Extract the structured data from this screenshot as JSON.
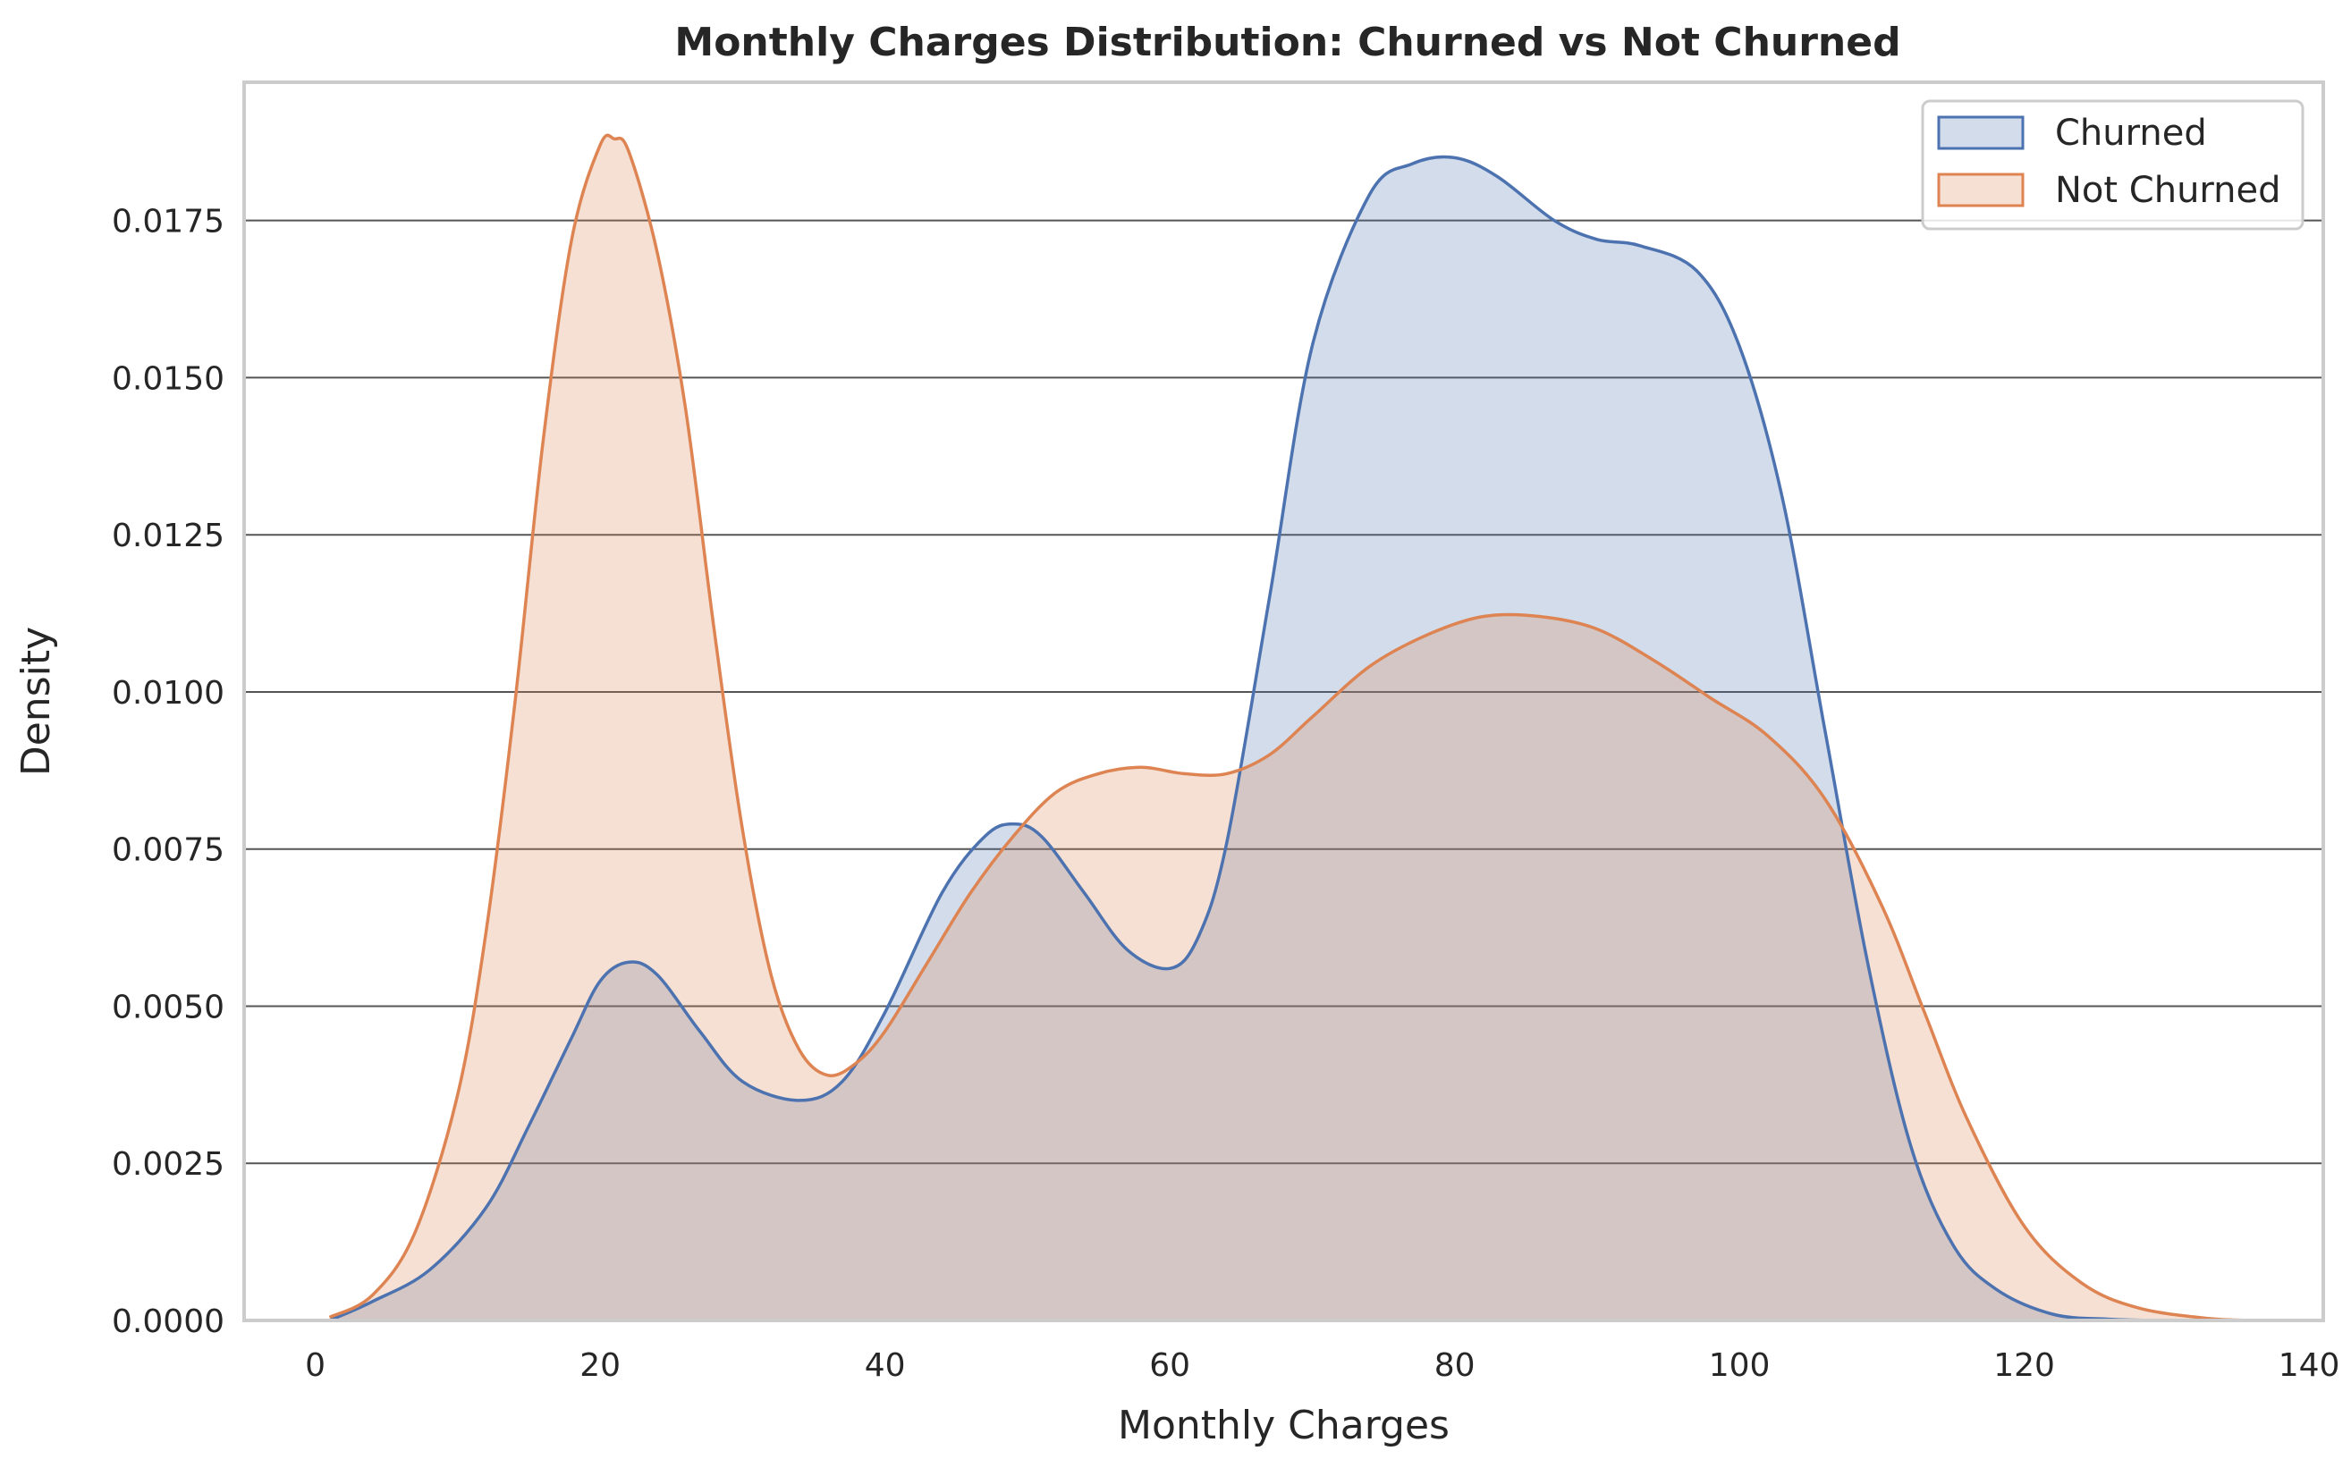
{
  "chart_data": {
    "type": "area",
    "title": "Monthly Charges Distribution: Churned vs Not Churned",
    "xlabel": "Monthly Charges",
    "ylabel": "Density",
    "xlim": [
      -5,
      141
    ],
    "ylim": [
      0,
      0.0197
    ],
    "xticks": [
      0,
      20,
      40,
      60,
      80,
      100,
      120,
      140
    ],
    "xtick_labels": [
      "0",
      "20",
      "40",
      "60",
      "80",
      "100",
      "120",
      "140"
    ],
    "yticks": [
      0,
      0.0025,
      0.005,
      0.0075,
      0.01,
      0.0125,
      0.015,
      0.0175
    ],
    "ytick_labels": [
      "0.0000",
      "0.0025",
      "0.0050",
      "0.0075",
      "0.0100",
      "0.0125",
      "0.0150",
      "0.0175"
    ],
    "grid": "horizontal",
    "legend_position": "top-right",
    "series": [
      {
        "name": "Churned",
        "color": "#4c72b0",
        "fill": "#4c72b0",
        "x": [
          1,
          4,
          8,
          12,
          15,
          18,
          20,
          22,
          24,
          27,
          30,
          34,
          37,
          40,
          44,
          47,
          49,
          51,
          54,
          57,
          60,
          62,
          64,
          67,
          70,
          74,
          77,
          80,
          83,
          87,
          90,
          93,
          97,
          100,
          103,
          106,
          109,
          112,
          115,
          118,
          122,
          126,
          130,
          136
        ],
        "y": [
          0,
          0.0003,
          0.0008,
          0.0018,
          0.0031,
          0.0045,
          0.0054,
          0.0057,
          0.0055,
          0.0046,
          0.0038,
          0.0035,
          0.0038,
          0.0049,
          0.0068,
          0.0077,
          0.0079,
          0.0077,
          0.0068,
          0.0059,
          0.0056,
          0.0061,
          0.0076,
          0.0115,
          0.0155,
          0.0179,
          0.0184,
          0.0185,
          0.0182,
          0.0175,
          0.0172,
          0.0171,
          0.0167,
          0.0155,
          0.0131,
          0.0094,
          0.0057,
          0.0028,
          0.0012,
          0.0005,
          0.0001,
          2e-05,
          0,
          0
        ]
      },
      {
        "name": "Not Churned",
        "color": "#dd8452",
        "fill": "#dd8452",
        "x": [
          1,
          4,
          7,
          10,
          12,
          14,
          16,
          18,
          20,
          21,
          22,
          24,
          26,
          28,
          30,
          32,
          34,
          36,
          38,
          40,
          43,
          46,
          49,
          52,
          55,
          58,
          61,
          64,
          67,
          70,
          74,
          78,
          82,
          86,
          90,
          94,
          98,
          102,
          106,
          110,
          113,
          116,
          120,
          124,
          128,
          133,
          136
        ],
        "y": [
          5e-05,
          0.0004,
          0.0014,
          0.0036,
          0.0062,
          0.0098,
          0.014,
          0.0172,
          0.0187,
          0.0188,
          0.0186,
          0.017,
          0.0145,
          0.011,
          0.0078,
          0.0055,
          0.0043,
          0.0039,
          0.0041,
          0.0046,
          0.0057,
          0.0068,
          0.0077,
          0.0084,
          0.0087,
          0.0088,
          0.0087,
          0.0087,
          0.009,
          0.0096,
          0.0104,
          0.0109,
          0.0112,
          0.0112,
          0.011,
          0.0105,
          0.0099,
          0.0093,
          0.0083,
          0.0066,
          0.0049,
          0.0032,
          0.0015,
          0.0006,
          0.0002,
          3e-05,
          0
        ]
      }
    ]
  }
}
